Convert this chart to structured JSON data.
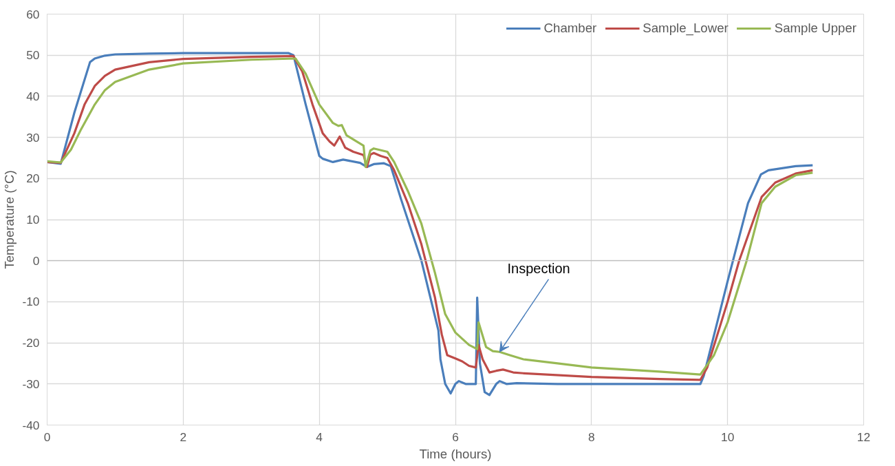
{
  "chart_data": {
    "type": "line",
    "xlabel": "Time (hours)",
    "ylabel": "Temperature (°C)",
    "xlim": [
      0,
      12
    ],
    "ylim": [
      -40,
      60
    ],
    "xticks": [
      0,
      2,
      4,
      6,
      8,
      10,
      12
    ],
    "yticks": [
      -40,
      -30,
      -20,
      -10,
      0,
      10,
      20,
      30,
      40,
      50,
      60
    ],
    "grid": true,
    "legend": "top right",
    "marker": "none",
    "line_style": "solid",
    "annotations": [
      {
        "text": "Inspection",
        "x": 6.65,
        "y": -22.2
      }
    ],
    "series": [
      {
        "name": "Chamber",
        "color": "#4a7ebb",
        "x": [
          0,
          0.2,
          0.4,
          0.63,
          0.7,
          0.85,
          1.0,
          1.5,
          2.0,
          3.0,
          3.55,
          3.62,
          3.8,
          4.0,
          4.05,
          4.2,
          4.35,
          4.6,
          4.7,
          4.8,
          4.95,
          5.05,
          5.2,
          5.5,
          5.75,
          5.78,
          5.85,
          5.93,
          6.0,
          6.05,
          6.15,
          6.3,
          6.32,
          6.36,
          6.43,
          6.5,
          6.6,
          6.65,
          6.75,
          6.9,
          7.5,
          8,
          9,
          9.6,
          9.65,
          10.0,
          10.3,
          10.49,
          10.6,
          11.0,
          11.25
        ],
        "values": [
          24,
          23.6,
          36,
          48.3,
          49.2,
          49.9,
          50.2,
          50.4,
          50.5,
          50.5,
          50.5,
          50,
          38,
          25.5,
          24.8,
          24,
          24.6,
          23.8,
          22.8,
          23.5,
          23.7,
          23,
          15,
          0,
          -17,
          -24,
          -30,
          -32.3,
          -30,
          -29.3,
          -30,
          -30,
          -9,
          -25,
          -32,
          -32.7,
          -30,
          -29.3,
          -30,
          -29.8,
          -30,
          -30,
          -30,
          -30,
          -28,
          -5,
          14,
          21,
          22,
          23,
          23.2
        ]
      },
      {
        "name": "Sample_Lower",
        "color": "#be4b48",
        "x": [
          0,
          0.2,
          0.4,
          0.55,
          0.7,
          0.85,
          1.0,
          1.5,
          2,
          3,
          3.62,
          3.75,
          3.9,
          4.05,
          4.15,
          4.22,
          4.3,
          4.38,
          4.5,
          4.65,
          4.7,
          4.75,
          4.8,
          4.9,
          5.0,
          5.1,
          5.3,
          5.5,
          5.7,
          5.8,
          5.88,
          6.0,
          6.1,
          6.2,
          6.3,
          6.34,
          6.4,
          6.5,
          6.6,
          6.7,
          6.85,
          7,
          8,
          9,
          9.6,
          9.7,
          10.0,
          10.17,
          10.5,
          10.7,
          11,
          11.25
        ],
        "values": [
          24,
          23.8,
          31,
          38,
          42.5,
          45,
          46.5,
          48.3,
          49.1,
          49.6,
          49.8,
          46,
          38,
          31,
          29,
          28,
          30.2,
          27.5,
          26.5,
          25.7,
          22.8,
          25.8,
          26.2,
          25.5,
          25,
          22,
          14,
          4,
          -9,
          -18,
          -23,
          -23.8,
          -24.5,
          -25.6,
          -26,
          -20.5,
          -24,
          -27.2,
          -26.8,
          -26.5,
          -27.2,
          -27.4,
          -28.3,
          -28.8,
          -29,
          -26,
          -10,
          0,
          15.5,
          19,
          21.2,
          22
        ]
      },
      {
        "name": "Sample Upper",
        "color": "#98b954",
        "x": [
          0,
          0.2,
          0.35,
          0.5,
          0.7,
          0.85,
          1.0,
          1.5,
          2,
          3,
          3.65,
          3.8,
          4.0,
          4.2,
          4.28,
          4.33,
          4.4,
          4.55,
          4.65,
          4.68,
          4.75,
          4.8,
          5.0,
          5.1,
          5.3,
          5.5,
          5.7,
          5.85,
          6.0,
          6.2,
          6.32,
          6.34,
          6.45,
          6.55,
          6.65,
          6.8,
          7,
          7.5,
          8,
          9,
          9.6,
          9.8,
          10.0,
          10.28,
          10.5,
          10.7,
          11,
          11.25
        ],
        "values": [
          24.2,
          23.9,
          27,
          32,
          38,
          41.5,
          43.5,
          46.5,
          48,
          48.9,
          49.2,
          45.5,
          38,
          33.5,
          32.8,
          33,
          30.5,
          29,
          28,
          22.8,
          26.8,
          27.3,
          26.5,
          24,
          17,
          9,
          -3,
          -13,
          -17.5,
          -20.5,
          -21.5,
          -15,
          -21,
          -22,
          -22.2,
          -23,
          -24,
          -25,
          -26,
          -27,
          -27.7,
          -23,
          -15,
          0,
          14,
          18,
          20.8,
          21.4
        ]
      }
    ]
  }
}
